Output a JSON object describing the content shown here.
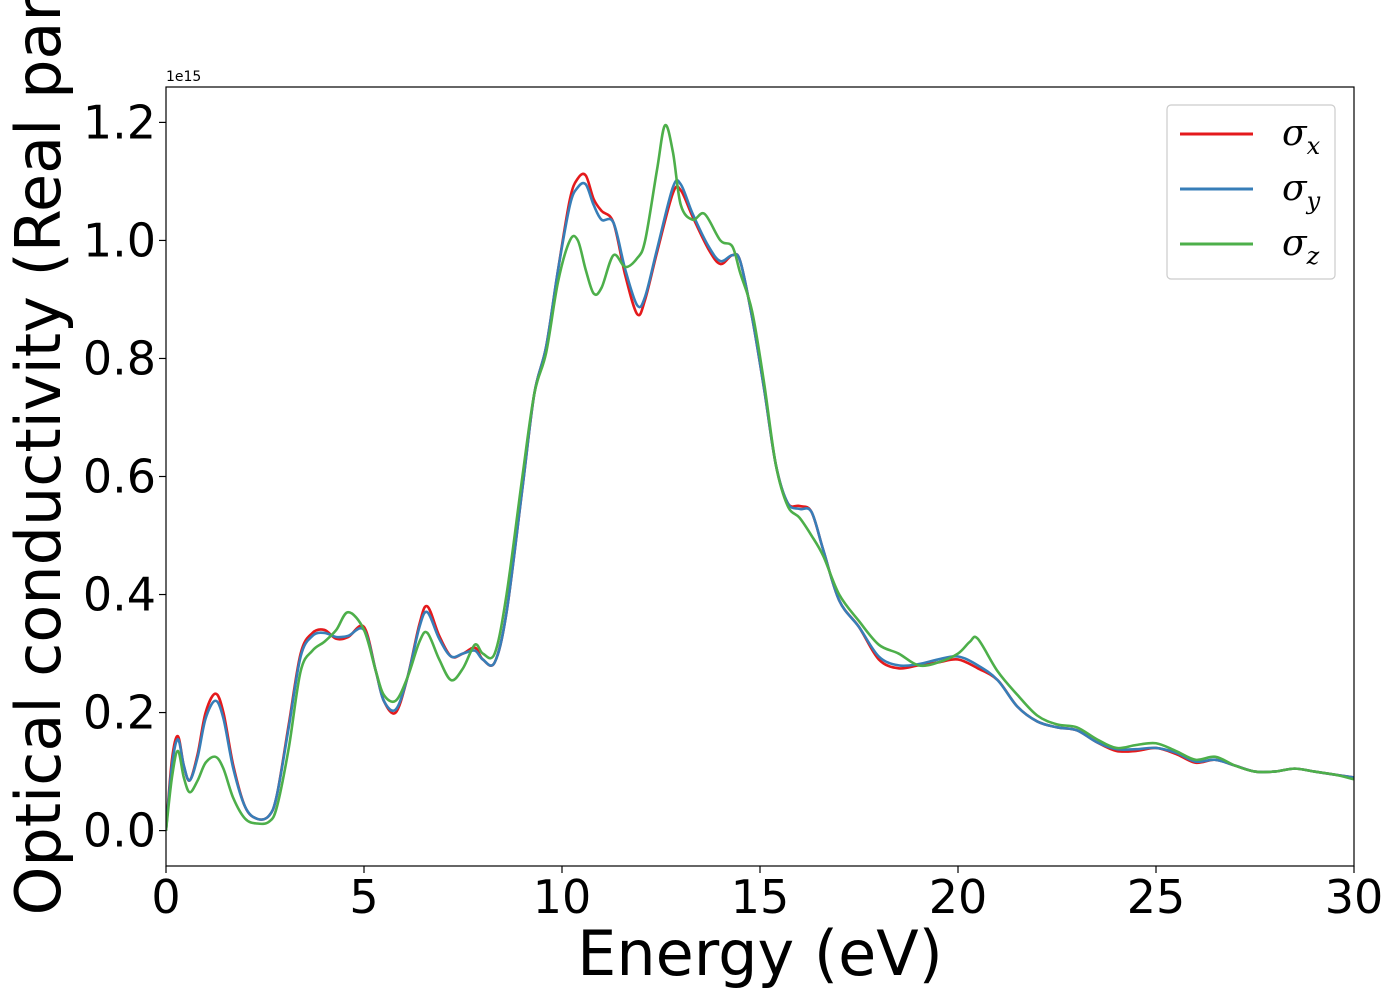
{
  "chart_data": {
    "type": "line",
    "title": "",
    "xlabel": "Energy (eV)",
    "ylabel": "Optical conductivity (Real part)",
    "y_offset_text": "1e15",
    "y_multiplier": 1000000000000000.0,
    "xlim": [
      0,
      30
    ],
    "ylim": [
      -0.06,
      1.26
    ],
    "xticks": [
      0,
      5,
      10,
      15,
      20,
      25,
      30
    ],
    "xtick_labels": [
      "0",
      "5",
      "10",
      "15",
      "20",
      "25",
      "30"
    ],
    "yticks": [
      0.0,
      0.2,
      0.4,
      0.6,
      0.8,
      1.0,
      1.2
    ],
    "ytick_labels": [
      "0.0",
      "0.2",
      "0.4",
      "0.6",
      "0.8",
      "1.0",
      "1.2"
    ],
    "grid": false,
    "legend_position": "top-right",
    "series": [
      {
        "name": "σx",
        "symbol": "σ",
        "subscript": "x",
        "color": "#e41a1c",
        "x": [
          0,
          0.15,
          0.3,
          0.45,
          0.6,
          0.8,
          1.0,
          1.25,
          1.45,
          1.7,
          2.0,
          2.3,
          2.6,
          2.8,
          3.1,
          3.4,
          3.7,
          4.0,
          4.3,
          4.6,
          5.0,
          5.3,
          5.5,
          5.8,
          6.1,
          6.4,
          6.6,
          6.9,
          7.2,
          7.5,
          7.8,
          8.0,
          8.3,
          8.6,
          9.0,
          9.3,
          9.6,
          9.9,
          10.2,
          10.4,
          10.6,
          10.8,
          11.0,
          11.3,
          11.6,
          11.9,
          12.1,
          12.4,
          12.8,
          13.0,
          13.3,
          13.7,
          14.0,
          14.3,
          14.5,
          14.8,
          15.1,
          15.4,
          15.7,
          16.0,
          16.3,
          16.6,
          17.0,
          17.5,
          18.0,
          18.5,
          19.0,
          19.5,
          20.0,
          20.5,
          21.0,
          21.5,
          22.0,
          22.5,
          23.0,
          23.5,
          24.0,
          24.5,
          25.0,
          25.5,
          26.0,
          26.5,
          27.0,
          27.5,
          28.0,
          28.5,
          29.0,
          29.5,
          30.0
        ],
        "y": [
          0.0,
          0.12,
          0.16,
          0.11,
          0.085,
          0.13,
          0.2,
          0.232,
          0.2,
          0.11,
          0.04,
          0.02,
          0.025,
          0.06,
          0.18,
          0.3,
          0.335,
          0.34,
          0.325,
          0.328,
          0.345,
          0.27,
          0.22,
          0.2,
          0.26,
          0.35,
          0.38,
          0.33,
          0.295,
          0.3,
          0.31,
          0.29,
          0.285,
          0.37,
          0.58,
          0.74,
          0.82,
          0.95,
          1.07,
          1.105,
          1.11,
          1.07,
          1.05,
          1.03,
          0.94,
          0.875,
          0.9,
          0.98,
          1.08,
          1.085,
          1.04,
          0.985,
          0.96,
          0.975,
          0.965,
          0.87,
          0.75,
          0.62,
          0.555,
          0.55,
          0.54,
          0.475,
          0.39,
          0.345,
          0.29,
          0.275,
          0.28,
          0.285,
          0.29,
          0.275,
          0.255,
          0.21,
          0.185,
          0.175,
          0.17,
          0.15,
          0.135,
          0.135,
          0.14,
          0.13,
          0.115,
          0.12,
          0.11,
          0.1,
          0.1,
          0.105,
          0.1,
          0.095,
          0.09
        ]
      },
      {
        "name": "σy",
        "symbol": "σ",
        "subscript": "y",
        "color": "#377eb8",
        "x": [
          0,
          0.15,
          0.3,
          0.45,
          0.6,
          0.8,
          1.0,
          1.25,
          1.45,
          1.7,
          2.0,
          2.3,
          2.6,
          2.8,
          3.1,
          3.4,
          3.7,
          4.0,
          4.3,
          4.6,
          5.0,
          5.3,
          5.5,
          5.8,
          6.1,
          6.4,
          6.6,
          6.9,
          7.2,
          7.5,
          7.8,
          8.0,
          8.3,
          8.6,
          9.0,
          9.3,
          9.6,
          9.9,
          10.2,
          10.4,
          10.6,
          10.8,
          11.0,
          11.3,
          11.6,
          11.9,
          12.1,
          12.4,
          12.8,
          13.0,
          13.3,
          13.7,
          14.0,
          14.3,
          14.5,
          14.8,
          15.1,
          15.4,
          15.7,
          16.0,
          16.3,
          16.6,
          17.0,
          17.5,
          18.0,
          18.5,
          19.0,
          19.5,
          20.0,
          20.5,
          21.0,
          21.5,
          22.0,
          22.5,
          23.0,
          23.5,
          24.0,
          24.5,
          25.0,
          25.5,
          26.0,
          26.5,
          27.0,
          27.5,
          28.0,
          28.5,
          29.0,
          29.5,
          30.0
        ],
        "y": [
          0.0,
          0.11,
          0.155,
          0.11,
          0.085,
          0.125,
          0.19,
          0.22,
          0.19,
          0.105,
          0.04,
          0.02,
          0.025,
          0.06,
          0.175,
          0.295,
          0.33,
          0.335,
          0.328,
          0.33,
          0.34,
          0.27,
          0.22,
          0.205,
          0.26,
          0.345,
          0.37,
          0.325,
          0.295,
          0.3,
          0.305,
          0.29,
          0.285,
          0.37,
          0.58,
          0.74,
          0.82,
          0.95,
          1.06,
          1.09,
          1.095,
          1.06,
          1.035,
          1.03,
          0.95,
          0.89,
          0.905,
          0.985,
          1.09,
          1.095,
          1.045,
          0.99,
          0.965,
          0.975,
          0.965,
          0.87,
          0.75,
          0.62,
          0.555,
          0.545,
          0.54,
          0.475,
          0.39,
          0.345,
          0.295,
          0.28,
          0.282,
          0.29,
          0.295,
          0.28,
          0.255,
          0.21,
          0.185,
          0.175,
          0.17,
          0.15,
          0.138,
          0.138,
          0.14,
          0.132,
          0.117,
          0.12,
          0.11,
          0.1,
          0.1,
          0.105,
          0.1,
          0.095,
          0.09
        ]
      },
      {
        "name": "σz",
        "symbol": "σ",
        "subscript": "z",
        "color": "#4daf4a",
        "x": [
          0,
          0.15,
          0.3,
          0.45,
          0.6,
          0.8,
          1.0,
          1.25,
          1.45,
          1.7,
          2.0,
          2.3,
          2.6,
          2.8,
          3.1,
          3.4,
          3.7,
          4.0,
          4.3,
          4.6,
          5.0,
          5.3,
          5.5,
          5.8,
          6.1,
          6.4,
          6.6,
          6.9,
          7.2,
          7.5,
          7.8,
          8.0,
          8.3,
          8.6,
          9.0,
          9.3,
          9.6,
          9.9,
          10.2,
          10.4,
          10.6,
          10.8,
          11.0,
          11.3,
          11.6,
          11.9,
          12.1,
          12.4,
          12.6,
          12.8,
          13.0,
          13.3,
          13.6,
          14.0,
          14.3,
          14.5,
          14.8,
          15.1,
          15.4,
          15.7,
          16.0,
          16.3,
          16.6,
          17.0,
          17.5,
          18.0,
          18.5,
          19.0,
          19.5,
          20.0,
          20.3,
          20.5,
          21.0,
          21.5,
          22.0,
          22.5,
          23.0,
          23.5,
          24.0,
          24.5,
          25.0,
          25.5,
          26.0,
          26.5,
          27.0,
          27.5,
          28.0,
          28.5,
          29.0,
          29.5,
          30.0
        ],
        "y": [
          0.0,
          0.09,
          0.135,
          0.09,
          0.065,
          0.085,
          0.115,
          0.125,
          0.105,
          0.055,
          0.02,
          0.012,
          0.015,
          0.04,
          0.14,
          0.27,
          0.305,
          0.32,
          0.34,
          0.37,
          0.34,
          0.27,
          0.23,
          0.22,
          0.26,
          0.32,
          0.335,
          0.29,
          0.255,
          0.275,
          0.315,
          0.3,
          0.3,
          0.4,
          0.6,
          0.74,
          0.81,
          0.93,
          1.0,
          1.0,
          0.95,
          0.91,
          0.92,
          0.975,
          0.955,
          0.97,
          1.0,
          1.12,
          1.195,
          1.15,
          1.06,
          1.035,
          1.045,
          1.0,
          0.99,
          0.945,
          0.88,
          0.76,
          0.62,
          0.55,
          0.53,
          0.5,
          0.465,
          0.4,
          0.355,
          0.315,
          0.3,
          0.28,
          0.285,
          0.3,
          0.32,
          0.325,
          0.27,
          0.23,
          0.195,
          0.18,
          0.175,
          0.155,
          0.14,
          0.145,
          0.148,
          0.135,
          0.12,
          0.125,
          0.11,
          0.1,
          0.1,
          0.105,
          0.1,
          0.095,
          0.087
        ]
      }
    ]
  }
}
